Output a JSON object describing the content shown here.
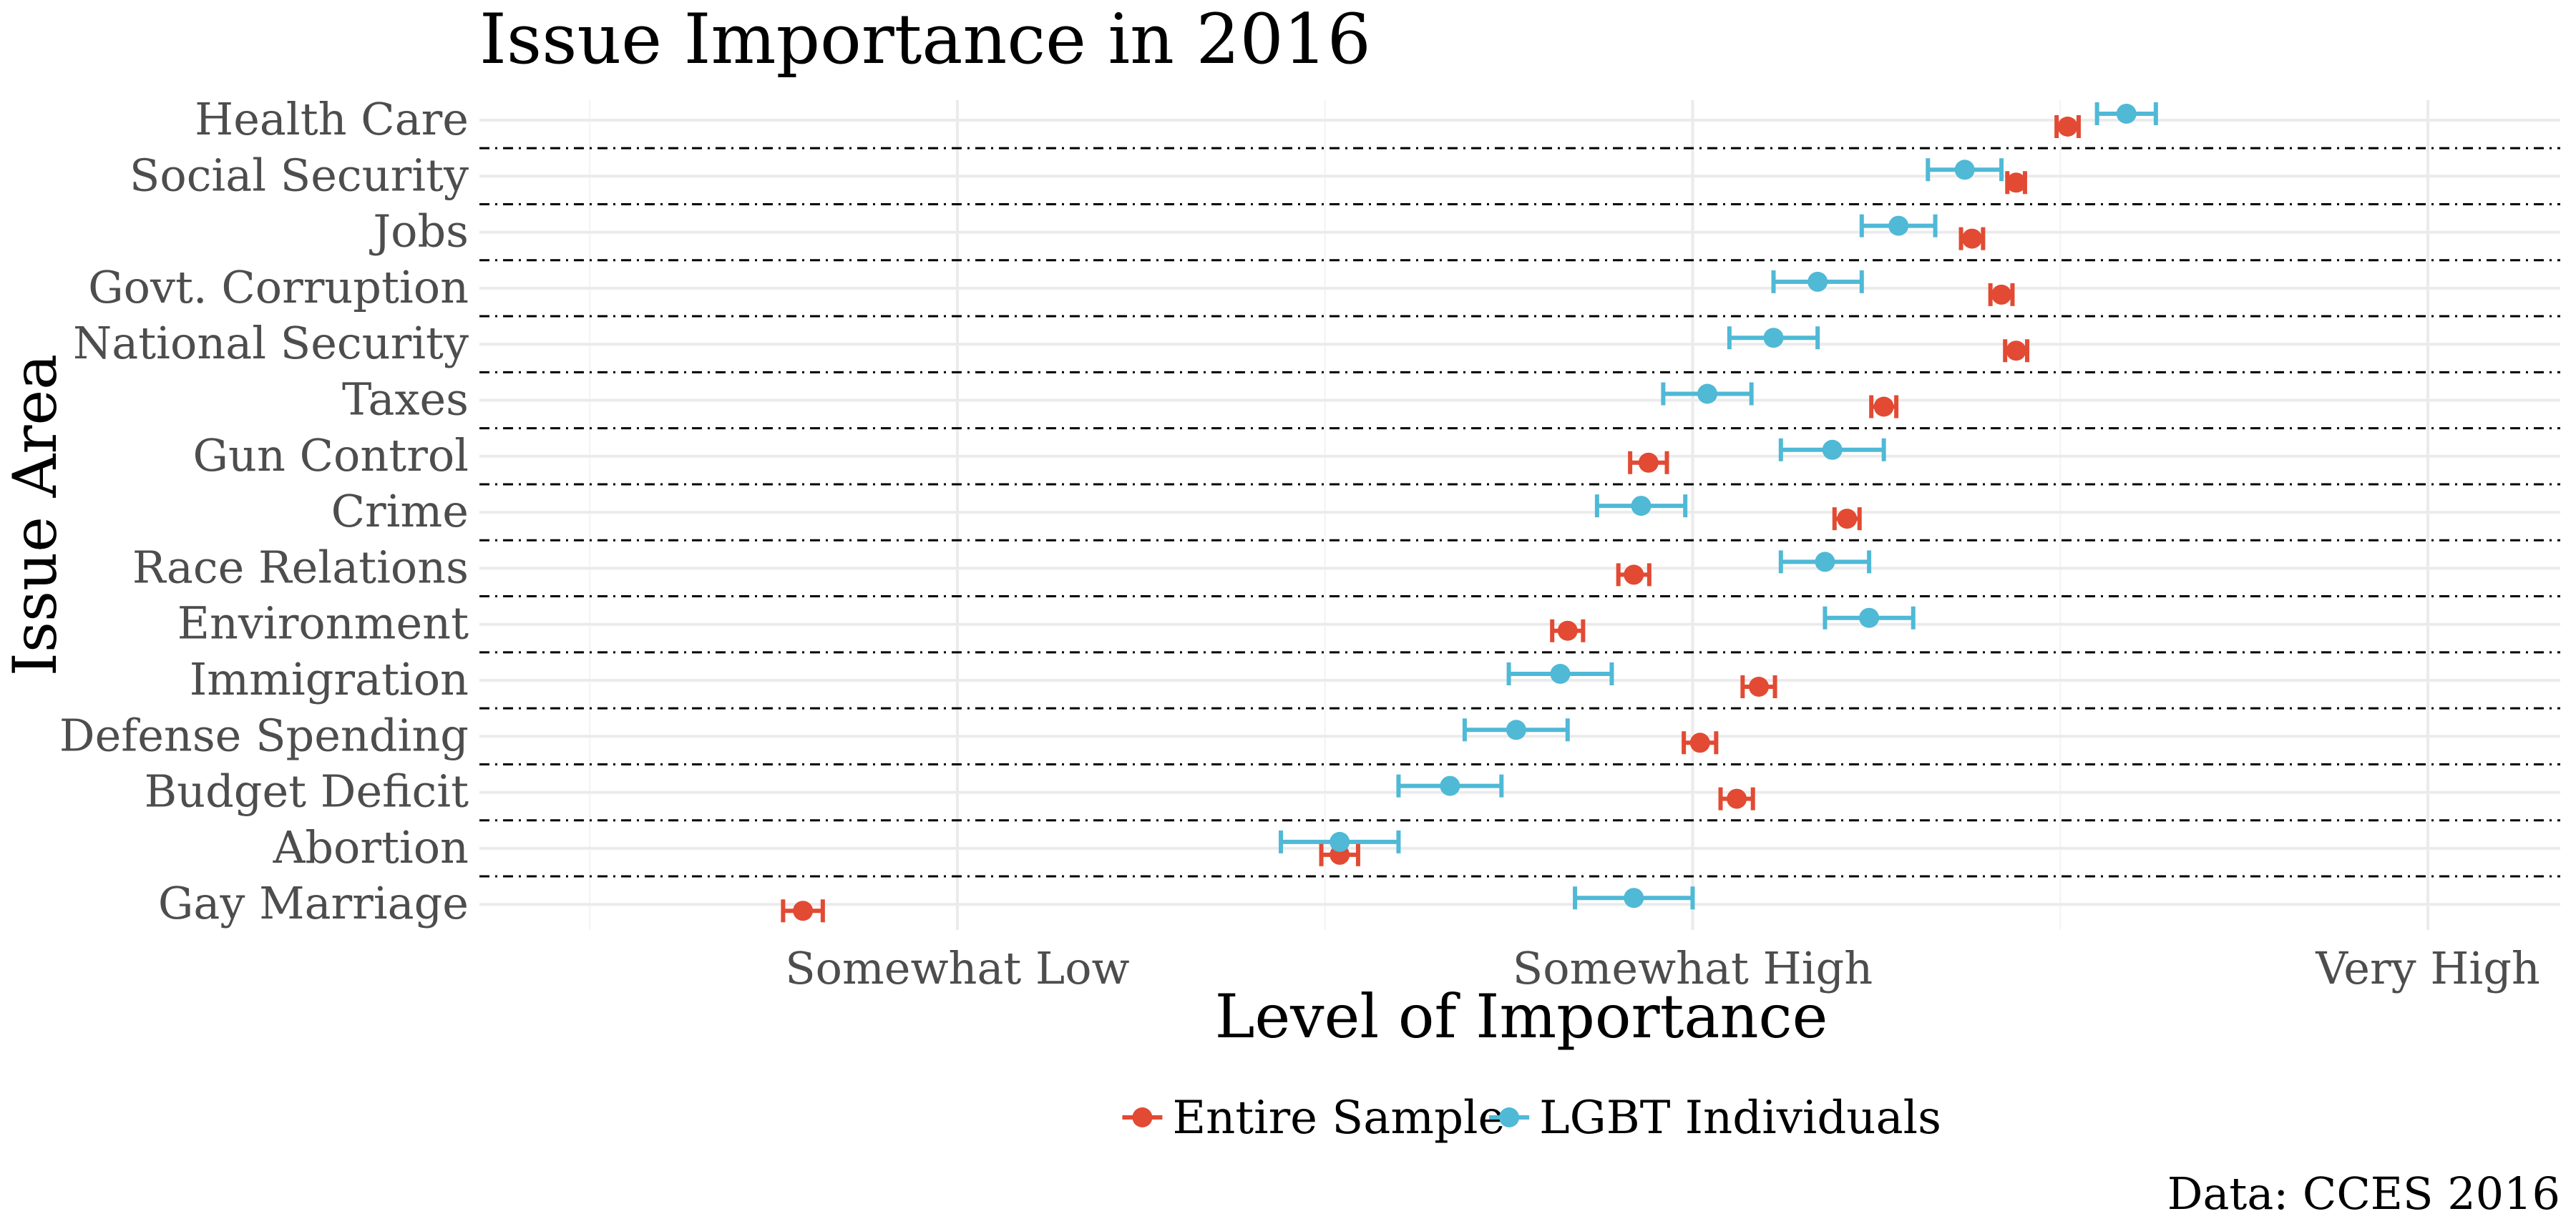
{
  "chart_data": {
    "type": "scatter",
    "title": "Issue Importance in 2016",
    "xlabel": "Level of Importance",
    "ylabel": "Issue Area",
    "caption": "Data: CCES 2016",
    "x_ticks": [
      {
        "value": 2,
        "label": "Somewhat Low"
      },
      {
        "value": 3,
        "label": "Somewhat High"
      },
      {
        "value": 4,
        "label": "Very High"
      }
    ],
    "xlim": [
      1.35,
      4.18
    ],
    "grid": true,
    "legend_position": "bottom",
    "categories": [
      "Health Care",
      "Social Security",
      "Jobs",
      "Govt. Corruption",
      "National Security",
      "Taxes",
      "Gun Control",
      "Crime",
      "Race Relations",
      "Environment",
      "Immigration",
      "Defense Spending",
      "Budget Deficit",
      "Abortion",
      "Gay Marriage"
    ],
    "series": [
      {
        "name": "Entire Sample",
        "color": "#E24A33",
        "offset": "below",
        "estimate": [
          3.51,
          3.44,
          3.38,
          3.42,
          3.44,
          3.26,
          2.94,
          3.21,
          2.92,
          2.83,
          3.09,
          3.01,
          3.06,
          2.52,
          1.79
        ],
        "lower": [
          3.495,
          3.428,
          3.365,
          3.405,
          3.425,
          3.243,
          2.915,
          3.193,
          2.899,
          2.809,
          3.068,
          2.988,
          3.038,
          2.495,
          1.763
        ],
        "upper": [
          3.525,
          3.452,
          3.395,
          3.435,
          3.455,
          3.277,
          2.965,
          3.227,
          2.941,
          2.851,
          3.112,
          3.032,
          3.082,
          2.545,
          1.817
        ]
      },
      {
        "name": "LGBT Individuals",
        "color": "#4FB9D6",
        "offset": "above",
        "estimate": [
          3.59,
          3.37,
          3.28,
          3.17,
          3.11,
          3.02,
          3.19,
          2.93,
          3.18,
          3.24,
          2.82,
          2.76,
          2.67,
          2.52,
          2.92
        ],
        "lower": [
          3.55,
          3.32,
          3.23,
          3.11,
          3.05,
          2.96,
          3.12,
          2.87,
          3.12,
          3.18,
          2.75,
          2.69,
          2.6,
          2.44,
          2.84
        ],
        "upper": [
          3.63,
          3.42,
          3.33,
          3.23,
          3.17,
          3.08,
          3.26,
          2.99,
          3.24,
          3.3,
          2.89,
          2.83,
          2.74,
          2.6,
          3.0
        ]
      }
    ]
  }
}
